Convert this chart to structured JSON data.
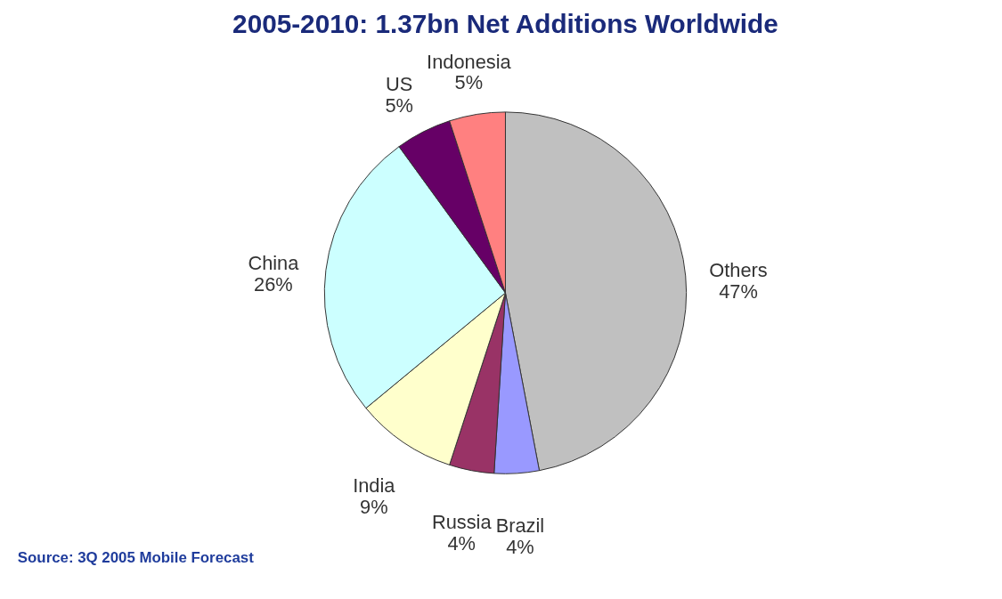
{
  "chart_data": {
    "type": "pie",
    "title": "2005-2010: 1.37bn Net Additions Worldwide",
    "categories": [
      "Others",
      "Brazil",
      "Russia",
      "India",
      "China",
      "US",
      "Indonesia"
    ],
    "values": [
      47,
      4,
      4,
      9,
      26,
      5,
      5
    ],
    "value_labels": [
      "47%",
      "4%",
      "4%",
      "9%",
      "26%",
      "5%",
      "5%"
    ],
    "colors": [
      "#c0c0c0",
      "#9999ff",
      "#993366",
      "#ffffcc",
      "#ccffff",
      "#660066",
      "#ff8080"
    ],
    "annotations": [
      "Source: 3Q 2005 Mobile Forecast"
    ]
  }
}
